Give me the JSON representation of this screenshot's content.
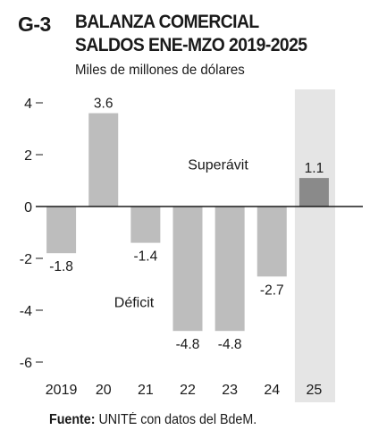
{
  "header": {
    "tag": "G-3",
    "title_line1": "BALANZA COMERCIAL",
    "title_line2": "SALDOS ENE-MZO 2019-2025",
    "subtitle": "Miles de millones de dólares"
  },
  "source": {
    "label": "Fuente:",
    "text": " UNITÉ con datos del BdeM."
  },
  "colors": {
    "bar_negative": "#bdbdbd",
    "bar_positive": "#8a8a8a",
    "bar_highlight": "#e5e5e5",
    "zero_line": "#1a1a1a",
    "grid": "#bfbfbf"
  },
  "chart_data": {
    "type": "bar",
    "categories": [
      "2019",
      "20",
      "21",
      "22",
      "23",
      "24",
      "25"
    ],
    "values": [
      -1.8,
      3.6,
      -1.4,
      -4.8,
      -4.8,
      -2.7,
      1.1
    ],
    "value_labels": [
      "-1.8",
      "3.6",
      "-1.4",
      "-4.8",
      "-4.8",
      "-2.7",
      "1.1"
    ],
    "ylim": [
      -6,
      4
    ],
    "yticks": [
      4,
      2,
      0,
      -2,
      -4,
      -6
    ],
    "ytick_labels": [
      "4",
      "2",
      "0",
      "-2",
      "-4",
      "-6"
    ],
    "annotations": {
      "surplus": "Superávit",
      "deficit": "Déficit"
    },
    "grid": false,
    "legend": "none"
  }
}
